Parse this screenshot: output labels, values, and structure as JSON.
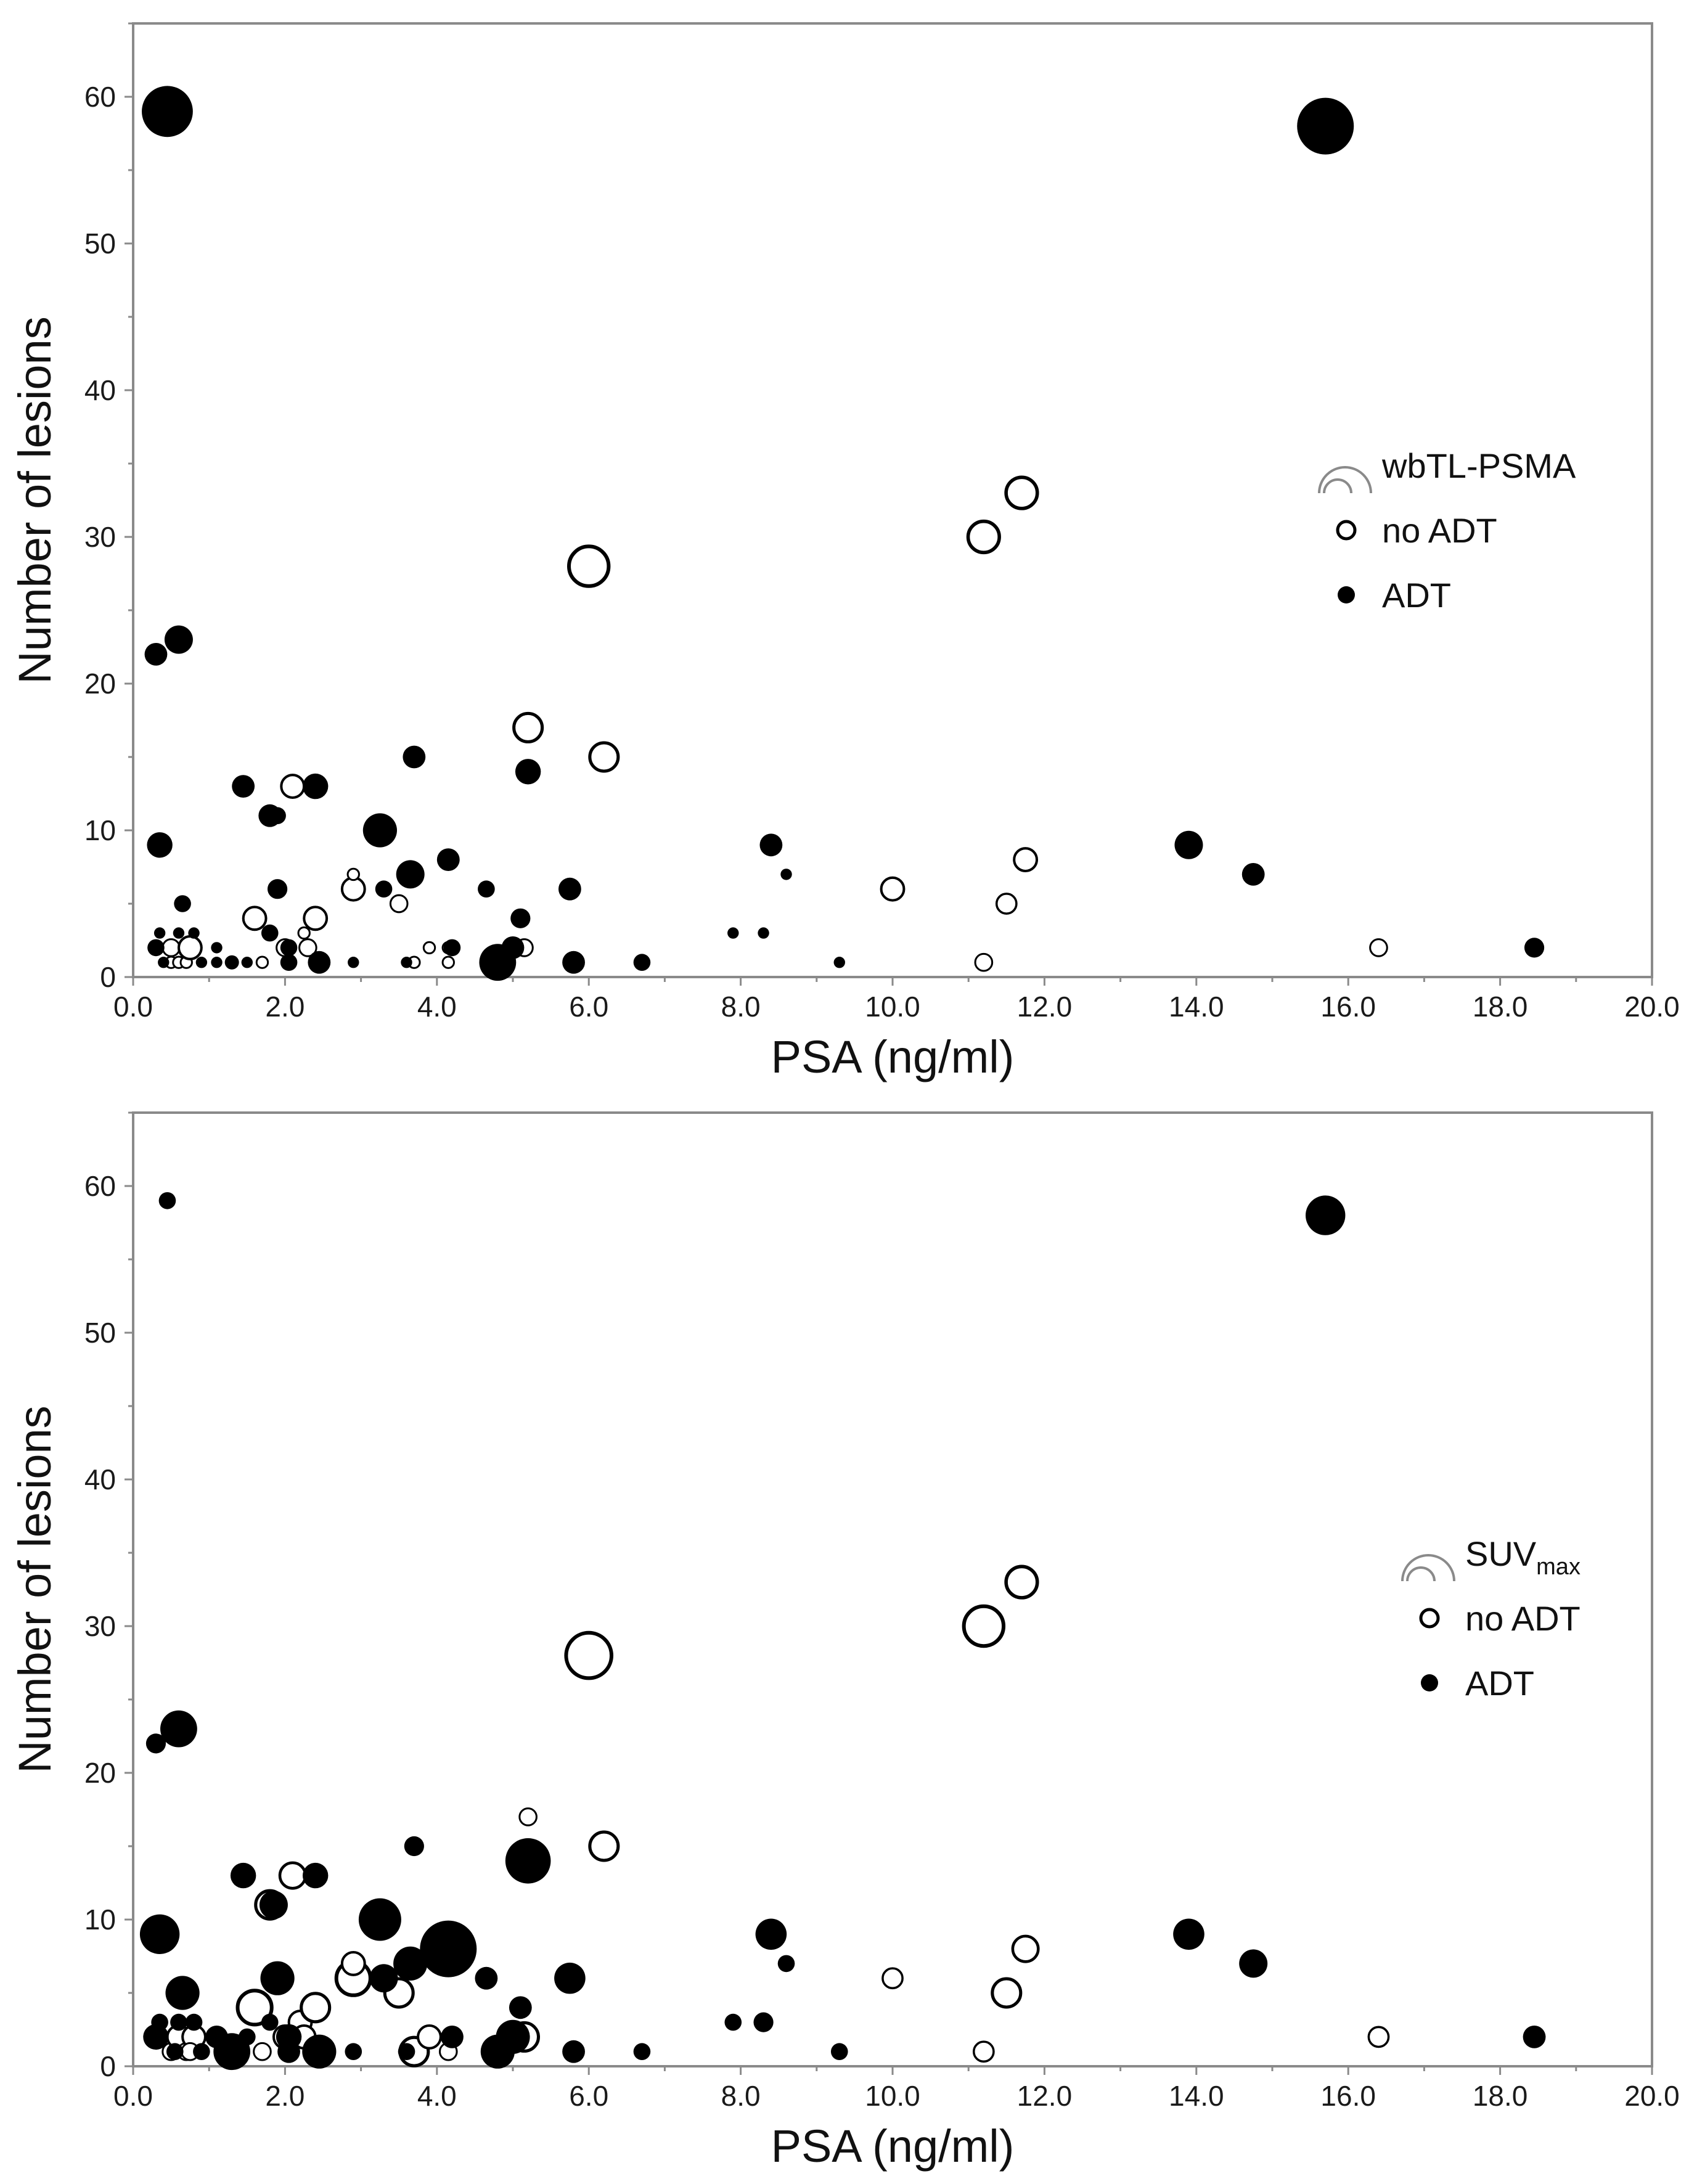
{
  "chart_data": [
    {
      "type": "scatter",
      "panel": "top",
      "xlabel": "PSA (ng/ml)",
      "ylabel": "Number of lesions",
      "xlim": [
        0,
        20
      ],
      "ylim": [
        0,
        65
      ],
      "xticks": [
        "0.0",
        "2.0",
        "4.0",
        "6.0",
        "8.0",
        "10.0",
        "12.0",
        "14.0",
        "16.0",
        "18.0",
        "20.0"
      ],
      "yticks": [
        "0",
        "10",
        "20",
        "30",
        "40",
        "50",
        "60"
      ],
      "legend": {
        "size_label": "wbTL-PSMA",
        "size_label_sub": "",
        "entries": [
          {
            "label": "no ADT",
            "series": "no_adt",
            "filled": false
          },
          {
            "label": "ADT",
            "series": "adt",
            "filled": true
          }
        ],
        "position": "right-middle"
      },
      "series": [
        {
          "name": "no ADT",
          "filled": false,
          "color": "#000000",
          "points": [
            [
              0.5,
              1,
              2
            ],
            [
              0.6,
              1,
              2
            ],
            [
              0.7,
              1,
              2
            ],
            [
              0.5,
              2,
              3
            ],
            [
              0.75,
              2,
              4
            ],
            [
              1.7,
              1,
              2
            ],
            [
              1.6,
              4,
              4
            ],
            [
              2.1,
              13,
              4
            ],
            [
              2.0,
              2,
              3
            ],
            [
              2.3,
              2,
              3
            ],
            [
              2.25,
              3,
              2
            ],
            [
              2.4,
              4,
              4
            ],
            [
              2.9,
              6,
              4
            ],
            [
              2.9,
              7,
              2
            ],
            [
              3.5,
              5,
              3
            ],
            [
              3.7,
              1,
              2
            ],
            [
              3.9,
              2,
              2
            ],
            [
              4.15,
              1,
              2
            ],
            [
              4.15,
              2,
              2
            ],
            [
              5.15,
              2,
              3
            ],
            [
              5.2,
              17,
              5
            ],
            [
              6.0,
              28,
              7
            ],
            [
              6.2,
              15,
              5
            ],
            [
              10.0,
              6,
              4
            ],
            [
              11.2,
              30,
              5.5
            ],
            [
              11.7,
              33,
              5.5
            ],
            [
              11.2,
              1,
              3
            ],
            [
              11.5,
              5,
              3.5
            ],
            [
              11.75,
              8,
              4
            ],
            [
              16.4,
              2,
              3
            ]
          ]
        },
        {
          "name": "ADT",
          "filled": true,
          "color": "#000000",
          "points": [
            [
              0.45,
              59,
              9
            ],
            [
              15.7,
              58,
              10
            ],
            [
              0.3,
              22,
              4
            ],
            [
              0.6,
              23,
              5
            ],
            [
              0.35,
              9,
              4.5
            ],
            [
              0.3,
              2,
              3
            ],
            [
              0.35,
              3,
              2
            ],
            [
              0.4,
              1,
              2
            ],
            [
              0.65,
              5,
              3
            ],
            [
              0.6,
              3,
              2
            ],
            [
              0.8,
              3,
              2
            ],
            [
              0.9,
              1,
              2
            ],
            [
              1.1,
              2,
              2
            ],
            [
              1.1,
              1,
              2
            ],
            [
              1.3,
              1,
              2.5
            ],
            [
              1.45,
              13,
              4
            ],
            [
              1.5,
              1,
              2
            ],
            [
              1.8,
              11,
              4
            ],
            [
              1.9,
              11,
              3
            ],
            [
              1.9,
              6,
              3.5
            ],
            [
              1.8,
              3,
              3
            ],
            [
              2.05,
              1,
              3
            ],
            [
              2.05,
              2,
              3
            ],
            [
              2.4,
              13,
              4.5
            ],
            [
              2.45,
              1,
              4
            ],
            [
              2.9,
              1,
              2
            ],
            [
              3.25,
              10,
              6
            ],
            [
              3.3,
              6,
              3
            ],
            [
              3.6,
              1,
              2
            ],
            [
              3.65,
              7,
              5
            ],
            [
              3.7,
              15,
              4
            ],
            [
              3.7,
              7,
              3
            ],
            [
              4.15,
              8,
              4
            ],
            [
              4.2,
              2,
              3
            ],
            [
              4.65,
              6,
              3
            ],
            [
              4.8,
              1,
              6.5
            ],
            [
              5.0,
              2,
              4
            ],
            [
              5.1,
              4,
              3.5
            ],
            [
              5.2,
              14,
              4.5
            ],
            [
              5.8,
              1,
              4
            ],
            [
              5.75,
              6,
              4
            ],
            [
              6.7,
              1,
              3
            ],
            [
              7.9,
              3,
              2
            ],
            [
              8.3,
              3,
              2
            ],
            [
              8.4,
              9,
              4
            ],
            [
              8.6,
              7,
              2
            ],
            [
              9.3,
              1,
              2
            ],
            [
              13.9,
              9,
              5
            ],
            [
              14.75,
              7,
              4
            ],
            [
              18.45,
              2,
              3.5
            ]
          ]
        }
      ]
    },
    {
      "type": "scatter",
      "panel": "bottom",
      "xlabel": "PSA (ng/ml)",
      "ylabel": "Number of lesions",
      "xlim": [
        0,
        20
      ],
      "ylim": [
        0,
        65
      ],
      "xticks": [
        "0.0",
        "2.0",
        "4.0",
        "6.0",
        "8.0",
        "10.0",
        "12.0",
        "14.0",
        "16.0",
        "18.0",
        "20.0"
      ],
      "yticks": [
        "0",
        "10",
        "20",
        "30",
        "40",
        "50",
        "60"
      ],
      "legend": {
        "size_label": "SUV",
        "size_label_sub": "max",
        "entries": [
          {
            "label": "no ADT",
            "series": "no_adt",
            "filled": false
          },
          {
            "label": "ADT",
            "series": "adt",
            "filled": true
          }
        ],
        "position": "right-middle"
      },
      "series": [
        {
          "name": "no ADT",
          "filled": false,
          "color": "#000000",
          "points": [
            [
              0.5,
              1,
              3
            ],
            [
              0.6,
              2,
              4
            ],
            [
              0.7,
              1,
              3
            ],
            [
              0.8,
              2,
              4
            ],
            [
              0.75,
              1,
              3
            ],
            [
              1.6,
              4,
              6
            ],
            [
              1.7,
              1,
              3
            ],
            [
              1.8,
              11,
              5
            ],
            [
              2.1,
              13,
              4.5
            ],
            [
              2.0,
              2,
              4
            ],
            [
              2.2,
              3,
              4
            ],
            [
              2.25,
              2,
              4
            ],
            [
              2.4,
              4,
              5
            ],
            [
              2.9,
              6,
              6
            ],
            [
              2.9,
              7,
              4
            ],
            [
              3.5,
              5,
              5
            ],
            [
              3.7,
              1,
              5
            ],
            [
              3.9,
              2,
              4
            ],
            [
              4.15,
              1,
              3
            ],
            [
              5.15,
              2,
              5
            ],
            [
              5.2,
              17,
              3
            ],
            [
              6.0,
              28,
              8
            ],
            [
              6.2,
              15,
              5
            ],
            [
              10.0,
              6,
              3.5
            ],
            [
              11.2,
              30,
              7
            ],
            [
              11.7,
              33,
              5.5
            ],
            [
              11.2,
              1,
              3.5
            ],
            [
              11.5,
              5,
              5
            ],
            [
              11.75,
              8,
              4.5
            ],
            [
              16.4,
              2,
              3.5
            ]
          ]
        },
        {
          "name": "ADT",
          "filled": true,
          "color": "#000000",
          "points": [
            [
              0.45,
              59,
              3
            ],
            [
              15.7,
              58,
              7
            ],
            [
              0.3,
              22,
              3.5
            ],
            [
              0.6,
              23,
              6.5
            ],
            [
              0.35,
              9,
              7
            ],
            [
              0.3,
              2,
              4.5
            ],
            [
              0.35,
              3,
              3
            ],
            [
              0.55,
              1,
              3
            ],
            [
              0.65,
              5,
              6
            ],
            [
              0.6,
              3,
              3
            ],
            [
              0.8,
              3,
              3
            ],
            [
              0.9,
              1,
              3
            ],
            [
              1.1,
              2,
              4
            ],
            [
              1.3,
              1,
              6.5
            ],
            [
              1.25,
              1,
              5
            ],
            [
              1.45,
              13,
              4.5
            ],
            [
              1.5,
              2,
              3
            ],
            [
              1.9,
              6,
              6
            ],
            [
              1.85,
              11,
              5
            ],
            [
              1.8,
              3,
              3
            ],
            [
              2.05,
              1,
              4
            ],
            [
              2.05,
              2,
              4.5
            ],
            [
              2.4,
              13,
              4.5
            ],
            [
              2.45,
              1,
              6
            ],
            [
              2.9,
              1,
              3
            ],
            [
              3.25,
              10,
              7.5
            ],
            [
              3.3,
              6,
              5
            ],
            [
              3.6,
              1,
              3
            ],
            [
              3.65,
              7,
              6
            ],
            [
              3.7,
              15,
              3.5
            ],
            [
              4.15,
              8,
              10
            ],
            [
              4.2,
              2,
              4
            ],
            [
              4.65,
              6,
              4
            ],
            [
              4.8,
              1,
              6
            ],
            [
              5.0,
              2,
              6
            ],
            [
              5.1,
              4,
              4
            ],
            [
              5.2,
              14,
              8
            ],
            [
              5.8,
              1,
              4
            ],
            [
              5.75,
              6,
              5.5
            ],
            [
              6.7,
              1,
              3
            ],
            [
              7.9,
              3,
              3
            ],
            [
              8.3,
              3,
              3.5
            ],
            [
              8.4,
              9,
              5.5
            ],
            [
              8.6,
              7,
              3
            ],
            [
              9.3,
              1,
              3
            ],
            [
              13.9,
              9,
              5.5
            ],
            [
              14.75,
              7,
              5
            ],
            [
              18.45,
              2,
              4
            ]
          ]
        }
      ]
    }
  ]
}
